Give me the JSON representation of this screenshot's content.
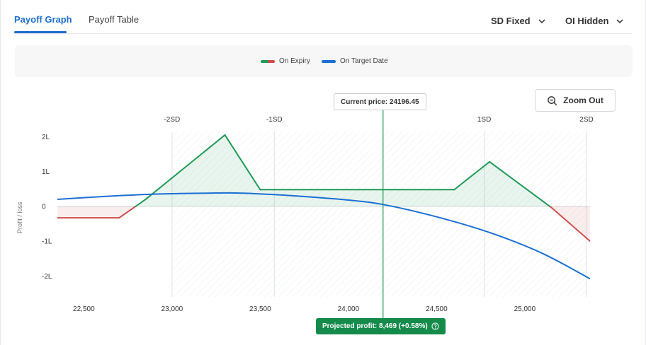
{
  "tabs": [
    {
      "label": "Payoff Graph",
      "active": true
    },
    {
      "label": "Payoff Table",
      "active": false
    }
  ],
  "controls": {
    "sd_dropdown": "SD Fixed",
    "oi_dropdown": "OI Hidden",
    "zoom_button": "Zoom Out"
  },
  "legend": {
    "expiry_label": "On Expiry",
    "target_label": "On Target Date"
  },
  "colors": {
    "accent": "#1f6fd1",
    "profit": "#1f9a55",
    "loss": "#cf4c4c",
    "target_line": "#1b6fd4",
    "projected_badge": "#148a4b"
  },
  "current_price_text": "Current price: 24196.45",
  "projected_profit_text": "Projected profit: 8,469 (+0.58%)",
  "chart_data": {
    "type": "line",
    "title": "",
    "xlabel": "",
    "ylabel": "Profit / loss",
    "xlim": [
      22350,
      25370
    ],
    "ylim": [
      -2.6,
      2.15
    ],
    "x_ticks": [
      22500,
      23000,
      23500,
      24000,
      24500,
      25000
    ],
    "x_tick_labels": [
      "22,500",
      "23,000",
      "23,500",
      "24,000",
      "24,500",
      "25,000"
    ],
    "y_ticks": [
      2,
      1,
      0,
      -1,
      -2
    ],
    "y_tick_labels": [
      "2L",
      "1L",
      "0",
      "-1L",
      "-2L"
    ],
    "sd_lines": [
      {
        "label": "-2SD",
        "x": 23000
      },
      {
        "label": "-1SD",
        "x": 23580
      },
      {
        "label": "1SD",
        "x": 24770
      },
      {
        "label": "2SD",
        "x": 25350
      }
    ],
    "current_price": 24196.45,
    "series": [
      {
        "name": "On Expiry",
        "x": [
          22350,
          22700,
          22850,
          23300,
          23500,
          24600,
          24800,
          25150,
          25370
        ],
        "y": [
          -0.33,
          -0.33,
          0.2,
          2.05,
          0.48,
          0.48,
          1.28,
          -0.03,
          -1.0
        ]
      },
      {
        "name": "On Target Date",
        "x": [
          22350,
          22600,
          22900,
          23200,
          23400,
          23700,
          24000,
          24200,
          24500,
          24800,
          25100,
          25370
        ],
        "y": [
          0.2,
          0.28,
          0.35,
          0.38,
          0.38,
          0.3,
          0.18,
          0.05,
          -0.3,
          -0.75,
          -1.35,
          -2.08
        ]
      }
    ],
    "grid": true
  }
}
